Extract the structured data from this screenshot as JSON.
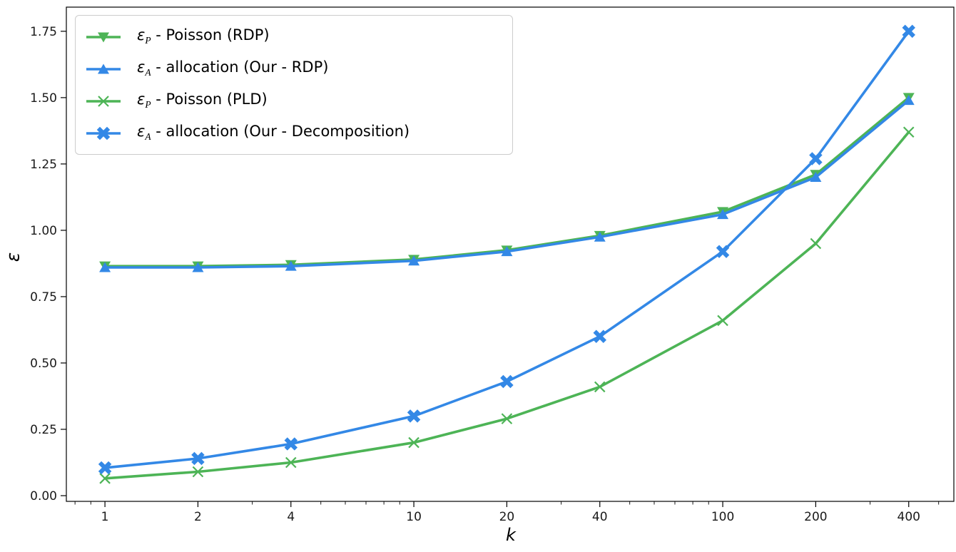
{
  "chart_data": {
    "type": "line",
    "title": "",
    "xlabel": "k",
    "ylabel": "ε",
    "x_scale": "log",
    "grid": false,
    "legend_position": "upper left",
    "xlim": [
      0.75,
      560
    ],
    "ylim": [
      -0.0215,
      1.841
    ],
    "x": [
      1,
      2,
      4,
      10,
      20,
      40,
      100,
      200,
      400
    ],
    "x_ticks": [
      {
        "v": 1,
        "label": "1"
      },
      {
        "v": 2,
        "label": "2"
      },
      {
        "v": 4,
        "label": "4"
      },
      {
        "v": 10,
        "label": "10"
      },
      {
        "v": 20,
        "label": "20"
      },
      {
        "v": 40,
        "label": "40"
      },
      {
        "v": 100,
        "label": "100"
      },
      {
        "v": 200,
        "label": "200"
      },
      {
        "v": 400,
        "label": "400"
      }
    ],
    "x_minor_ticks": [
      0.8,
      0.9,
      3,
      5,
      6,
      7,
      8,
      9,
      30,
      50,
      60,
      70,
      80,
      90,
      300,
      500
    ],
    "y_ticks": [
      {
        "v": 0.0,
        "label": "0.00"
      },
      {
        "v": 0.25,
        "label": "0.25"
      },
      {
        "v": 0.5,
        "label": "0.50"
      },
      {
        "v": 0.75,
        "label": "0.75"
      },
      {
        "v": 1.0,
        "label": "1.00"
      },
      {
        "v": 1.25,
        "label": "1.25"
      },
      {
        "v": 1.5,
        "label": "1.50"
      },
      {
        "v": 1.75,
        "label": "1.75"
      }
    ],
    "series": [
      {
        "id": "poisson-rdp",
        "name": "ε_P - Poisson (RDP)",
        "color": "#4db456",
        "marker": "triangle-down",
        "values": [
          0.865,
          0.865,
          0.87,
          0.89,
          0.925,
          0.98,
          1.07,
          1.21,
          1.5
        ]
      },
      {
        "id": "allocation-rdp",
        "name": "ε_A - allocation (Our - RDP)",
        "color": "#3388e6",
        "marker": "triangle-up",
        "values": [
          0.86,
          0.86,
          0.865,
          0.885,
          0.92,
          0.975,
          1.06,
          1.2,
          1.49
        ]
      },
      {
        "id": "poisson-pld",
        "name": "ε_P - Poisson (PLD)",
        "color": "#4db456",
        "marker": "x-thin",
        "values": [
          0.065,
          0.09,
          0.125,
          0.2,
          0.29,
          0.41,
          0.66,
          0.95,
          1.37
        ]
      },
      {
        "id": "allocation-decomposition",
        "name": "ε_A - allocation (Our - Decomposition)",
        "color": "#3388e6",
        "marker": "x-thick",
        "values": [
          0.105,
          0.14,
          0.195,
          0.3,
          0.43,
          0.6,
          0.92,
          1.27,
          1.75
        ]
      }
    ]
  },
  "legend": {
    "items": [
      {
        "symbol": "ε",
        "subscript": "P",
        "text": " - Poisson (RDP)",
        "marker": "triangle-down",
        "color": "#4db456"
      },
      {
        "symbol": "ε",
        "subscript": "A",
        "text": " - allocation (Our - RDP)",
        "marker": "triangle-up",
        "color": "#3388e6"
      },
      {
        "symbol": "ε",
        "subscript": "P",
        "text": " - Poisson (PLD)",
        "marker": "x-thin",
        "color": "#4db456"
      },
      {
        "symbol": "ε",
        "subscript": "A",
        "text": " - allocation (Our - Decomposition)",
        "marker": "x-thick",
        "color": "#3388e6"
      }
    ]
  }
}
